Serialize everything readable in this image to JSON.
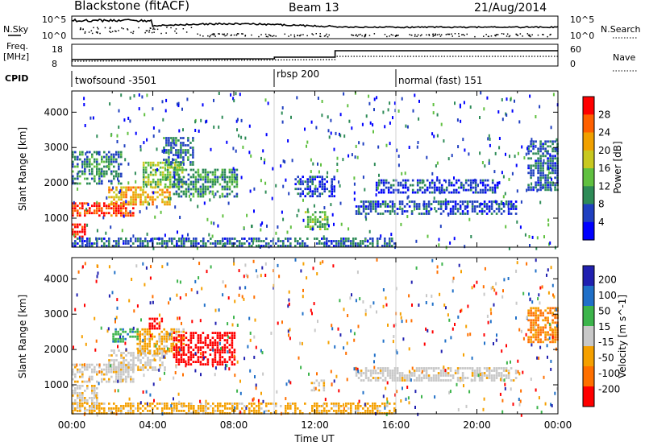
{
  "header": {
    "station": "Blackstone (fitACF)",
    "beam": "Beam 13",
    "date": "21/Aug/2014"
  },
  "strips": {
    "nsky_label": "N.Sky",
    "nsearch_label": "N.Search",
    "noise_tick_top": "10^5",
    "noise_tick_bottom": "10^0",
    "freq_label_1": "Freq.",
    "freq_label_2": "[MHz]",
    "freq_tick_top": "18",
    "freq_tick_bottom": "8",
    "nave_label": "Nave",
    "nave_tick_top": "60",
    "nave_tick_bottom": "0",
    "cpid_label": "CPID",
    "cpid_segments": [
      {
        "name": "twofsound -3501",
        "start_hour": 0
      },
      {
        "name": "rbsp 200",
        "start_hour": 10
      },
      {
        "name": "normal (fast) 151",
        "start_hour": 16
      }
    ]
  },
  "colors": {
    "power": [
      "#0000ff",
      "#2040c0",
      "#2e8b57",
      "#60c040",
      "#c8c820",
      "#f0a000",
      "#ff6000",
      "#ff0000"
    ],
    "velocity": [
      "#2020b0",
      "#2070c8",
      "#3cb44b",
      "#c8c8c8",
      "#f5a000",
      "#ff7000",
      "#ff0000"
    ]
  },
  "chart_data": [
    {
      "type": "heatmap",
      "name": "Power",
      "ylabel": "Slant Range [km]",
      "xlim": [
        0,
        24
      ],
      "ylim": [
        180,
        4600
      ],
      "y_ticks": [
        1000,
        2000,
        3000,
        4000
      ],
      "colorbar_label": "Power [dB]",
      "colorbar_ticks": [
        "4",
        "8",
        "12",
        "16",
        "20",
        "24",
        "28"
      ],
      "colorbar_range": [
        0,
        30
      ],
      "regions": [
        {
          "t": [
            0,
            0.7
          ],
          "r": [
            450,
            850
          ],
          "value": 28
        },
        {
          "t": [
            0,
            3.0
          ],
          "r": [
            1050,
            1450
          ],
          "value": 26
        },
        {
          "t": [
            1.8,
            4.8
          ],
          "r": [
            1400,
            1900
          ],
          "value": 20
        },
        {
          "t": [
            3.5,
            5.5
          ],
          "r": [
            1900,
            2600
          ],
          "value": 14
        },
        {
          "t": [
            0,
            2.5
          ],
          "r": [
            2000,
            2900
          ],
          "value": 9
        },
        {
          "t": [
            5.0,
            8.2
          ],
          "r": [
            1600,
            2400
          ],
          "value": 10
        },
        {
          "t": [
            4.5,
            6.0
          ],
          "r": [
            2500,
            3300
          ],
          "value": 8
        },
        {
          "t": [
            0,
            16.0
          ],
          "r": [
            180,
            450
          ],
          "value": 7
        },
        {
          "t": [
            11.0,
            13.0
          ],
          "r": [
            1600,
            2200
          ],
          "value": 5
        },
        {
          "t": [
            11.5,
            12.6
          ],
          "r": [
            700,
            1200
          ],
          "value": 12
        },
        {
          "t": [
            14.0,
            22.0
          ],
          "r": [
            1100,
            1500
          ],
          "value": 6
        },
        {
          "t": [
            15.0,
            21.0
          ],
          "r": [
            1700,
            2100
          ],
          "value": 5
        },
        {
          "t": [
            22.5,
            24.0
          ],
          "r": [
            1800,
            3200
          ],
          "value": 7
        }
      ]
    },
    {
      "type": "heatmap",
      "name": "Velocity",
      "ylabel": "Slant Range [km]",
      "xlabel": "Time UT",
      "xlim": [
        0,
        24
      ],
      "x_ticks": [
        "00:00",
        "04:00",
        "08:00",
        "12:00",
        "16:00",
        "20:00",
        "00:00"
      ],
      "ylim": [
        180,
        4600
      ],
      "y_ticks": [
        1000,
        2000,
        3000,
        4000
      ],
      "colorbar_label": "Velocity [m s^-1]",
      "colorbar_ticks": [
        "200",
        "100",
        "50",
        "15",
        "-15",
        "-50",
        "-100",
        "-200"
      ],
      "colorbar_range": [
        -250,
        250
      ],
      "regions": [
        {
          "t": [
            0,
            1.3
          ],
          "r": [
            300,
            1000
          ],
          "value": 0
        },
        {
          "t": [
            0,
            3.0
          ],
          "r": [
            1100,
            1600
          ],
          "value": 0
        },
        {
          "t": [
            1.8,
            4.6
          ],
          "r": [
            1400,
            2000
          ],
          "value": 0
        },
        {
          "t": [
            3.2,
            5.5
          ],
          "r": [
            1900,
            2600
          ],
          "value": -30
        },
        {
          "t": [
            2.0,
            3.3
          ],
          "r": [
            2200,
            2600
          ],
          "value": 60
        },
        {
          "t": [
            3.8,
            4.4
          ],
          "r": [
            2600,
            2900
          ],
          "value": -200
        },
        {
          "t": [
            5.0,
            8.0
          ],
          "r": [
            1600,
            2500
          ],
          "value": -200
        },
        {
          "t": [
            0,
            16.0
          ],
          "r": [
            180,
            500
          ],
          "value": -30
        },
        {
          "t": [
            11.8,
            12.4
          ],
          "r": [
            850,
            1150
          ],
          "value": 0
        },
        {
          "t": [
            14.0,
            22.0
          ],
          "r": [
            1100,
            1500
          ],
          "value": 0
        },
        {
          "t": [
            22.5,
            24.0
          ],
          "r": [
            2200,
            3200
          ],
          "value": -80
        }
      ]
    }
  ]
}
